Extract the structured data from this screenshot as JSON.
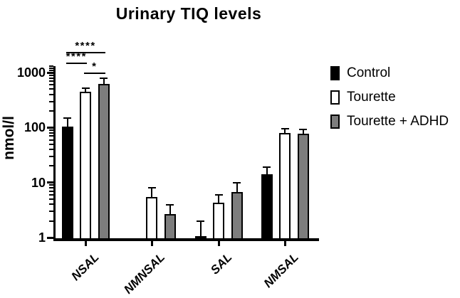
{
  "chart_data": {
    "type": "bar",
    "title": "Urinary TIQ levels",
    "ylabel": "nmol/l",
    "xlabel": "",
    "yscale": "log",
    "ylim": [
      1,
      1500
    ],
    "yticks": [
      1,
      10,
      100,
      1000
    ],
    "grid": false,
    "legend_position": "right",
    "categories": [
      "NSAL",
      "NMNSAL",
      "SAL",
      "NMSAL"
    ],
    "series": [
      {
        "name": "Control",
        "fill": "#000000",
        "values": [
          105,
          null,
          1.05,
          14
        ],
        "upper_error": [
          150,
          null,
          2.0,
          19
        ]
      },
      {
        "name": "Tourette",
        "fill": "#ffffff",
        "values": [
          450,
          5.5,
          4.3,
          80
        ],
        "upper_error": [
          520,
          8.0,
          6.0,
          95
        ]
      },
      {
        "name": "Tourette + ADHD",
        "fill": "#7d7d7d",
        "values": [
          620,
          2.7,
          6.8,
          77
        ],
        "upper_error": [
          800,
          3.9,
          9.8,
          92
        ]
      }
    ],
    "significance": [
      {
        "category": "NSAL",
        "between": [
          "Control",
          "Tourette + ADHD"
        ],
        "label": "****"
      },
      {
        "category": "NSAL",
        "between": [
          "Control",
          "Tourette"
        ],
        "label": "****"
      },
      {
        "category": "NSAL",
        "between": [
          "Tourette",
          "Tourette + ADHD"
        ],
        "label": "*"
      }
    ],
    "colors": {
      "ink": "#000000",
      "background": "#ffffff",
      "bar_gray": "#7d7d7d"
    }
  }
}
